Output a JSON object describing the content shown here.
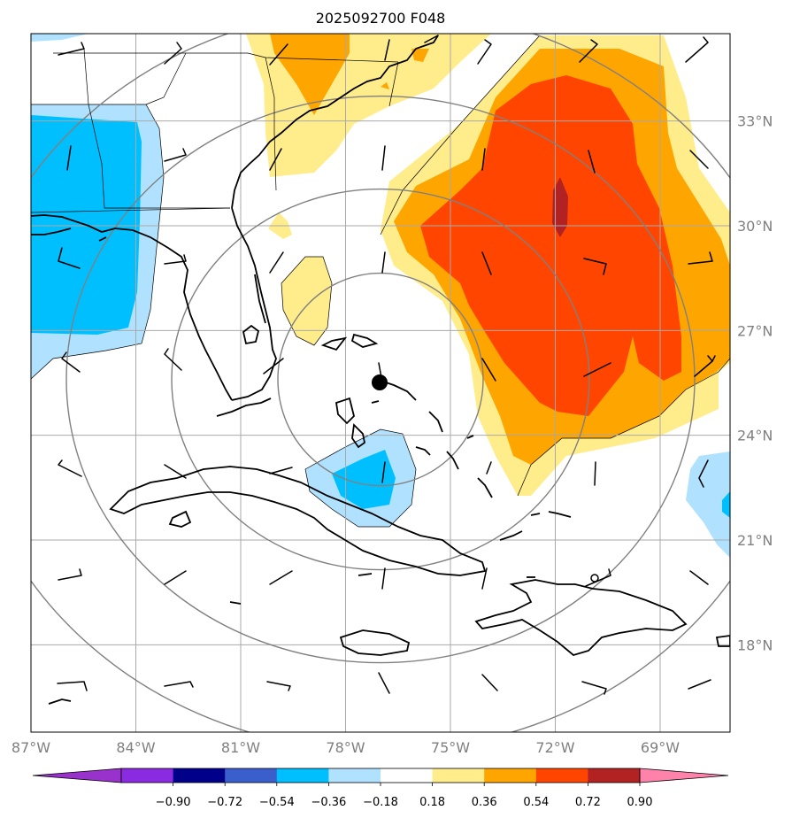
{
  "title": "2025092700 F048",
  "map": {
    "projection": "equidistant-lonlat",
    "lon_range": [
      -87,
      -67
    ],
    "lat_range": [
      15.5,
      35.5
    ],
    "grid": true,
    "grid_color": "#a9a9a9",
    "range_ring_color": "#808080",
    "storm_center": {
      "lon": -77.0,
      "lat": 25.6,
      "label": "storm-center-marker"
    }
  },
  "lon_ticks": [
    {
      "value": -87,
      "label": "87°W"
    },
    {
      "value": -84,
      "label": "84°W"
    },
    {
      "value": -81,
      "label": "81°W"
    },
    {
      "value": -78,
      "label": "78°W"
    },
    {
      "value": -75,
      "label": "75°W"
    },
    {
      "value": -72,
      "label": "72°W"
    },
    {
      "value": -69,
      "label": "69°W"
    }
  ],
  "lat_ticks": [
    {
      "value": 18,
      "label": "18°N"
    },
    {
      "value": 21,
      "label": "21°N"
    },
    {
      "value": 24,
      "label": "24°N"
    },
    {
      "value": 27,
      "label": "27°N"
    },
    {
      "value": 30,
      "label": "30°N"
    },
    {
      "value": 33,
      "label": "33°N"
    }
  ],
  "colorbar": {
    "levels": [
      "−0.90",
      "−0.72",
      "−0.54",
      "−0.36",
      "−0.18",
      "0.18",
      "0.36",
      "0.54",
      "0.72",
      "0.90"
    ],
    "colors": [
      "#9932cc",
      "#8a2be2",
      "#00008b",
      "#3a5fcd",
      "#00bfff",
      "#b0e2ff",
      "#ffffff",
      "#ffec8b",
      "#ffa500",
      "#ff4500",
      "#b22222",
      "#ff82ab"
    ],
    "extend": "both"
  },
  "contour_colors": {
    "neg_light": "#b0e2ff",
    "neg_mid": "#00bfff",
    "pos_light": "#ffec8b",
    "pos_mid": "#ffa500",
    "pos_high": "#ff4500",
    "pos_max": "#b22222"
  }
}
